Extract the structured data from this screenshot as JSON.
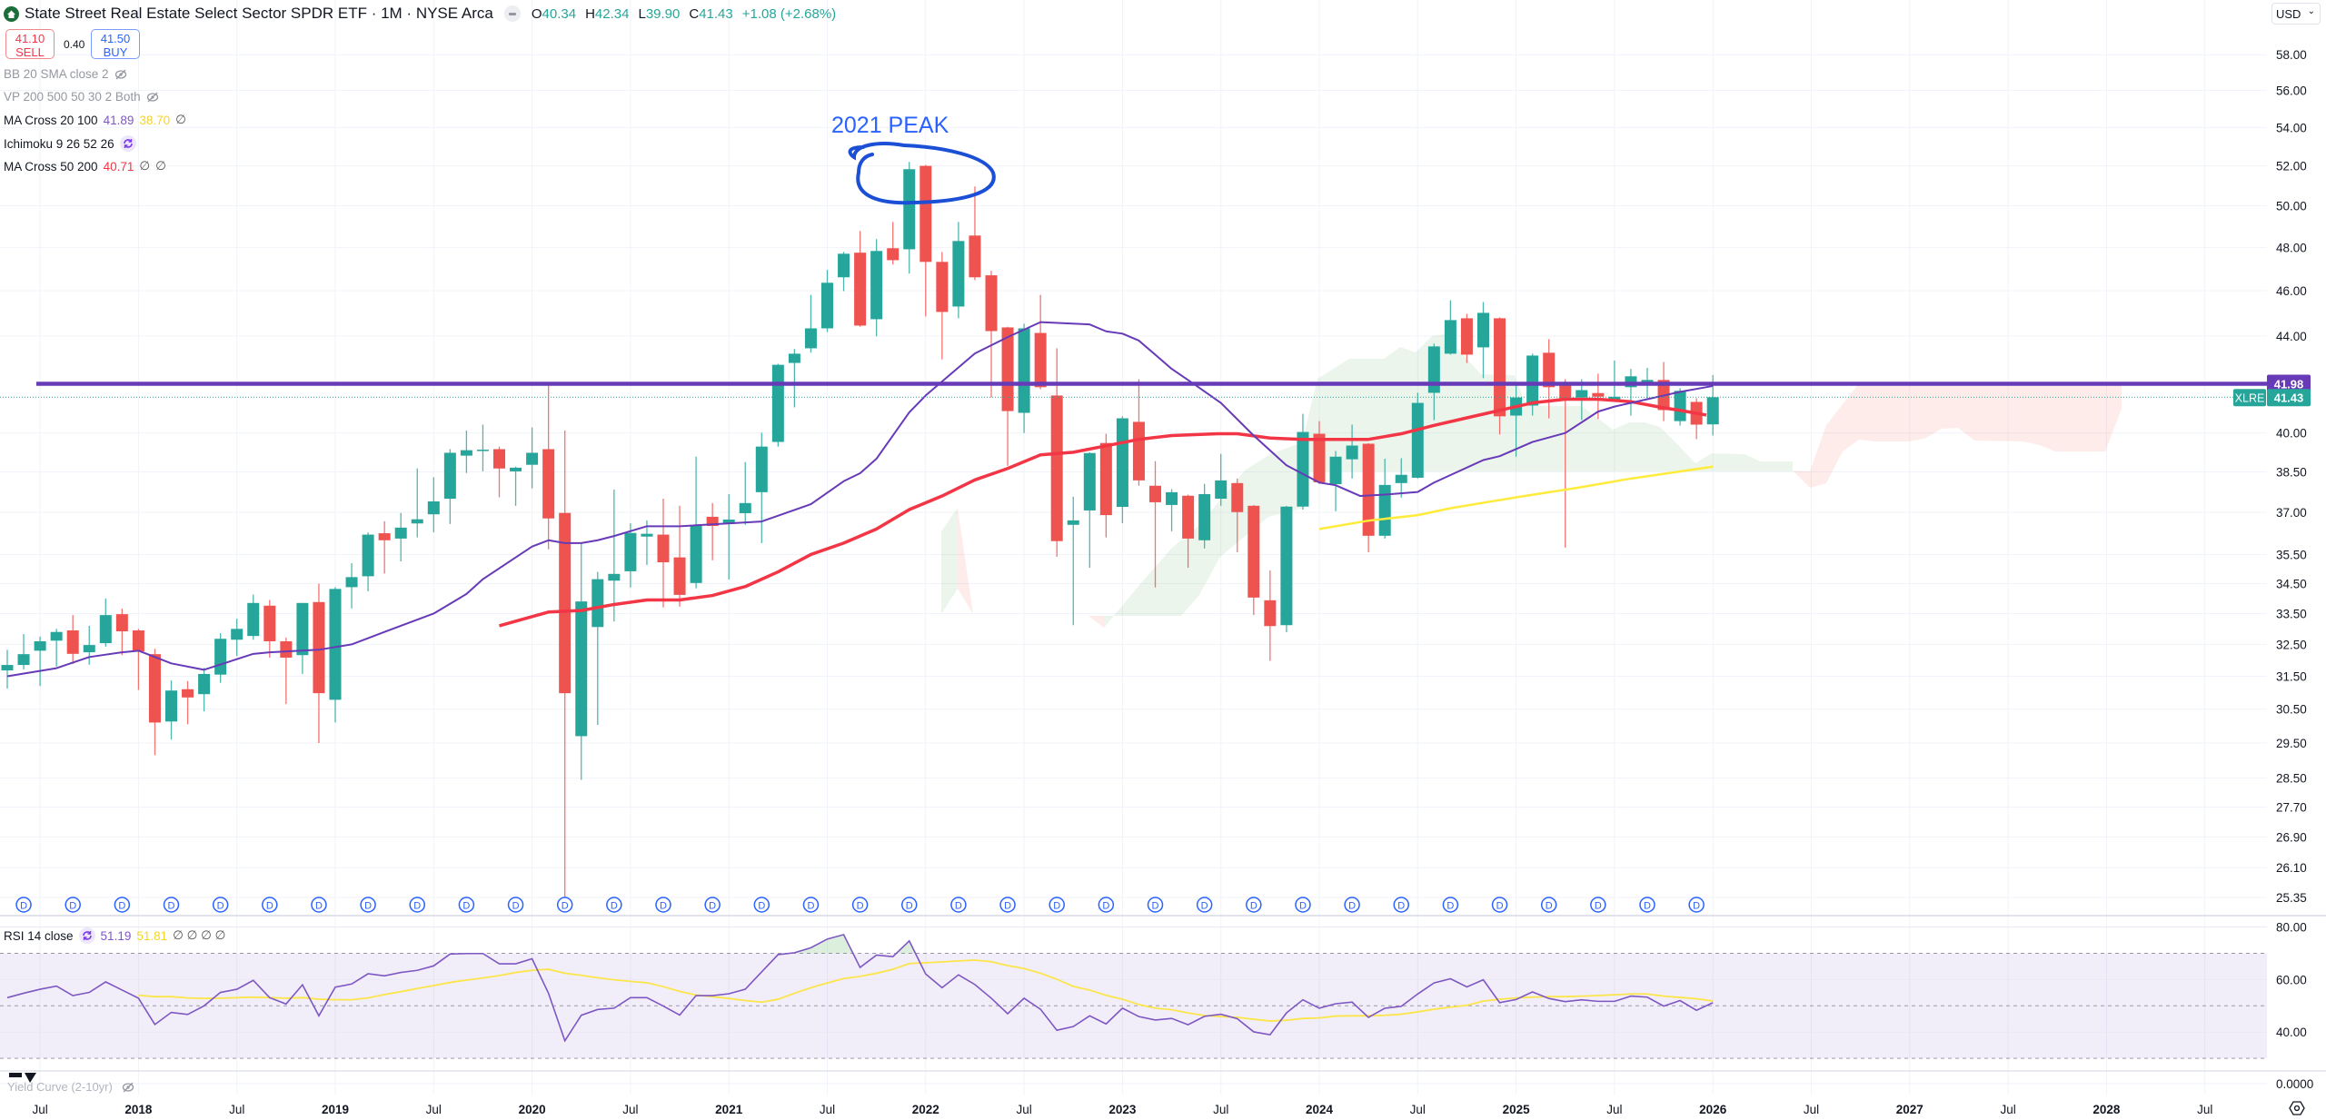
{
  "header": {
    "title": "State Street Real Estate Select Sector SPDR ETF · 1M · NYSE Arca",
    "ohlc": {
      "o_label": "O",
      "o": "40.34",
      "h_label": "H",
      "h": "42.34",
      "l_label": "L",
      "l": "39.90",
      "c_label": "C",
      "c": "41.43",
      "change": "+1.08 (+2.68%)"
    },
    "sell": {
      "price": "41.10",
      "label": "SELL"
    },
    "buy": {
      "price": "41.50",
      "label": "BUY"
    },
    "spread": "0.40",
    "currency": "USD"
  },
  "indicators": {
    "bb": "BB 20 SMA close 2",
    "vp": "VP 200 500 50 30 2 Both",
    "ma_cross_20_100": {
      "label": "MA Cross 20 100",
      "v1": "41.89",
      "v2": "38.70",
      "v3": "∅"
    },
    "ichimoku": "Ichimoku 9 26 52 26",
    "ma_cross_50_200": {
      "label": "MA Cross 50 200",
      "v1": "40.71",
      "v2": "∅",
      "v3": "∅"
    },
    "rsi": {
      "label": "RSI 14 close",
      "v1": "51.19",
      "v2": "51.81",
      "rest": "∅ ∅ ∅ ∅"
    },
    "yield_curve": "Yield Curve (2-10yr)",
    "yield_axis": "0.0000"
  },
  "colors": {
    "up": "#26a69a",
    "down": "#ef5350",
    "ma20": "#673ab7",
    "ma50": "#f23645",
    "ma100": "#ffeb3b",
    "hline": "#673ab7",
    "annotation": "#1a4fd6"
  },
  "annotation": {
    "text": "2021 PEAK"
  },
  "price_labels": {
    "hline": "41.98",
    "symbol": "XLRE",
    "last": "41.43"
  },
  "chart_data": {
    "type": "candlestick",
    "symbol": "XLRE",
    "interval": "1M",
    "start_month": "2017-05",
    "ylim": [
      24.9,
      61.2
    ],
    "yscale": "log",
    "price_ticks": [
      "58.00",
      "56.00",
      "54.00",
      "52.00",
      "50.00",
      "48.00",
      "46.00",
      "44.00",
      "40.00",
      "38.50",
      "37.00",
      "35.50",
      "34.50",
      "33.50",
      "32.50",
      "31.50",
      "30.50",
      "29.50",
      "28.50",
      "27.70",
      "26.90",
      "26.10",
      "25.35"
    ],
    "time_labels": [
      {
        "text": "Jul",
        "i": 2
      },
      {
        "text": "2018",
        "i": 8
      },
      {
        "text": "Jul",
        "i": 14
      },
      {
        "text": "2019",
        "i": 20
      },
      {
        "text": "Jul",
        "i": 26
      },
      {
        "text": "2020",
        "i": 32
      },
      {
        "text": "Jul",
        "i": 38
      },
      {
        "text": "2021",
        "i": 44
      },
      {
        "text": "Jul",
        "i": 50
      },
      {
        "text": "2022",
        "i": 56
      },
      {
        "text": "Jul",
        "i": 62
      },
      {
        "text": "2023",
        "i": 68
      },
      {
        "text": "Jul",
        "i": 74
      },
      {
        "text": "2024",
        "i": 80
      },
      {
        "text": "Jul",
        "i": 86
      },
      {
        "text": "2025",
        "i": 92
      },
      {
        "text": "Jul",
        "i": 98
      },
      {
        "text": "2026",
        "i": 104
      },
      {
        "text": "Jul",
        "i": 110
      },
      {
        "text": "2027",
        "i": 116
      },
      {
        "text": "Jul",
        "i": 122
      },
      {
        "text": "2028",
        "i": 128
      },
      {
        "text": "Jul",
        "i": 134
      }
    ],
    "ohlc": [
      [
        31.68,
        32.33,
        31.12,
        31.85
      ],
      [
        31.85,
        32.83,
        31.71,
        32.19
      ],
      [
        32.3,
        32.75,
        31.2,
        32.6
      ],
      [
        32.62,
        33.0,
        31.8,
        32.9
      ],
      [
        32.95,
        33.45,
        31.88,
        32.2
      ],
      [
        32.25,
        33.1,
        31.86,
        32.48
      ],
      [
        32.54,
        34.0,
        32.43,
        33.45
      ],
      [
        33.48,
        33.66,
        32.16,
        32.92
      ],
      [
        32.95,
        33.0,
        31.08,
        32.28
      ],
      [
        32.19,
        32.36,
        29.15,
        30.1
      ],
      [
        30.13,
        31.37,
        29.6,
        31.06
      ],
      [
        31.1,
        31.35,
        30.05,
        30.85
      ],
      [
        30.95,
        31.76,
        30.43,
        31.57
      ],
      [
        31.55,
        32.86,
        31.3,
        32.68
      ],
      [
        32.65,
        33.33,
        32.13,
        33.0
      ],
      [
        32.77,
        34.13,
        32.65,
        33.85
      ],
      [
        33.76,
        33.95,
        32.08,
        32.6
      ],
      [
        32.6,
        32.72,
        30.65,
        32.08
      ],
      [
        32.16,
        33.85,
        31.57,
        33.85
      ],
      [
        33.88,
        34.5,
        29.5,
        30.98
      ],
      [
        30.78,
        34.38,
        30.1,
        34.32
      ],
      [
        34.38,
        35.2,
        33.67,
        34.72
      ],
      [
        34.75,
        36.28,
        34.24,
        36.2
      ],
      [
        36.25,
        36.68,
        34.84,
        36.0
      ],
      [
        36.06,
        36.98,
        35.26,
        36.45
      ],
      [
        36.6,
        38.63,
        36.1,
        36.75
      ],
      [
        36.93,
        38.3,
        36.28,
        37.4
      ],
      [
        37.5,
        39.37,
        36.58,
        39.23
      ],
      [
        39.12,
        40.1,
        38.46,
        39.33
      ],
      [
        39.33,
        40.33,
        38.52,
        39.35
      ],
      [
        39.37,
        39.47,
        37.55,
        38.63
      ],
      [
        38.52,
        38.7,
        37.24,
        38.66
      ],
      [
        38.77,
        40.22,
        37.88,
        39.23
      ],
      [
        39.37,
        41.99,
        35.68,
        36.78
      ],
      [
        36.98,
        40.1,
        25.0,
        30.98
      ],
      [
        29.7,
        35.93,
        28.45,
        33.9
      ],
      [
        33.06,
        34.9,
        30.03,
        34.65
      ],
      [
        34.6,
        37.84,
        33.24,
        34.83
      ],
      [
        34.92,
        36.61,
        34.37,
        36.26
      ],
      [
        36.13,
        36.71,
        35.14,
        36.23
      ],
      [
        36.2,
        37.5,
        33.7,
        35.23
      ],
      [
        35.4,
        37.24,
        33.73,
        34.12
      ],
      [
        34.52,
        39.08,
        34.34,
        36.51
      ],
      [
        36.84,
        37.34,
        35.3,
        36.51
      ],
      [
        36.58,
        37.67,
        34.64,
        36.74
      ],
      [
        36.97,
        38.87,
        36.55,
        37.34
      ],
      [
        37.74,
        40.01,
        35.9,
        39.47
      ],
      [
        39.65,
        42.81,
        39.47,
        42.77
      ],
      [
        42.85,
        43.44,
        41.02,
        43.24
      ],
      [
        43.47,
        45.81,
        43.28,
        44.33
      ],
      [
        44.33,
        46.95,
        44.17,
        46.36
      ],
      [
        46.61,
        47.79,
        45.98,
        47.7
      ],
      [
        47.75,
        48.78,
        44.4,
        44.45
      ],
      [
        44.73,
        48.39,
        43.98,
        47.83
      ],
      [
        47.96,
        49.21,
        47.2,
        47.4
      ],
      [
        47.91,
        52.2,
        46.78,
        51.83
      ],
      [
        52.0,
        52.05,
        44.85,
        47.32
      ],
      [
        47.32,
        47.78,
        43.0,
        45.05
      ],
      [
        45.29,
        49.21,
        44.77,
        48.3
      ],
      [
        48.56,
        50.96,
        46.48,
        46.61
      ],
      [
        46.7,
        46.91,
        41.42,
        44.21
      ],
      [
        44.37,
        44.4,
        38.73,
        40.87
      ],
      [
        40.8,
        44.53,
        40.0,
        44.33
      ],
      [
        44.13,
        45.81,
        41.76,
        41.84
      ],
      [
        41.5,
        43.47,
        35.42,
        35.97
      ],
      [
        36.55,
        37.57,
        33.12,
        36.71
      ],
      [
        37.07,
        39.25,
        35.04,
        39.22
      ],
      [
        39.61,
        39.97,
        36.1,
        36.9
      ],
      [
        37.2,
        40.66,
        36.61,
        40.58
      ],
      [
        40.44,
        42.17,
        37.98,
        38.18
      ],
      [
        37.98,
        38.91,
        34.37,
        37.37
      ],
      [
        37.27,
        37.85,
        36.32,
        37.74
      ],
      [
        37.61,
        37.65,
        35.04,
        36.06
      ],
      [
        36.0,
        38.05,
        35.71,
        37.67
      ],
      [
        37.5,
        39.19,
        37.24,
        38.18
      ],
      [
        38.08,
        38.25,
        35.58,
        37.01
      ],
      [
        37.24,
        37.27,
        33.45,
        34.03
      ],
      [
        33.94,
        34.95,
        31.98,
        33.09
      ],
      [
        33.12,
        37.24,
        32.89,
        37.21
      ],
      [
        37.21,
        40.76,
        37.1,
        40.04
      ],
      [
        39.97,
        40.47,
        38.05,
        38.11
      ],
      [
        38.04,
        39.3,
        37.04,
        39.08
      ],
      [
        38.98,
        40.33,
        38.25,
        39.51
      ],
      [
        39.58,
        39.6,
        35.58,
        36.16
      ],
      [
        36.16,
        39.0,
        36.06,
        38.01
      ],
      [
        38.08,
        39.02,
        37.54,
        38.39
      ],
      [
        38.28,
        41.61,
        38.25,
        41.2
      ],
      [
        41.61,
        43.67,
        40.51,
        43.55
      ],
      [
        43.24,
        45.57,
        43.2,
        44.69
      ],
      [
        44.77,
        44.97,
        42.85,
        43.2
      ],
      [
        43.51,
        45.49,
        42.21,
        45.01
      ],
      [
        44.77,
        44.81,
        39.94,
        40.66
      ],
      [
        40.69,
        42.02,
        39.08,
        41.42
      ],
      [
        41.09,
        43.24,
        40.69,
        43.16
      ],
      [
        43.28,
        43.86,
        40.58,
        41.84
      ],
      [
        41.99,
        42.17,
        35.74,
        41.35
      ],
      [
        41.42,
        42.17,
        40.51,
        41.72
      ],
      [
        41.6,
        42.4,
        40.55,
        41.45
      ],
      [
        41.35,
        42.95,
        41.25,
        41.45
      ],
      [
        41.84,
        42.6,
        40.69,
        42.29
      ],
      [
        41.91,
        42.64,
        41.39,
        42.14
      ],
      [
        42.14,
        42.89,
        40.47,
        40.91
      ],
      [
        40.47,
        41.8,
        40.29,
        41.69
      ],
      [
        41.24,
        41.39,
        39.76,
        40.33
      ],
      [
        40.34,
        42.34,
        39.9,
        41.43
      ]
    ],
    "ma20": [
      [
        0,
        31.5
      ],
      [
        3,
        31.75
      ],
      [
        5,
        32.1
      ],
      [
        7,
        32.25
      ],
      [
        8,
        32.3
      ],
      [
        10,
        31.9
      ],
      [
        12,
        31.7
      ],
      [
        15,
        32.2
      ],
      [
        16,
        32.25
      ],
      [
        19,
        32.33
      ],
      [
        21,
        32.5
      ],
      [
        23,
        32.9
      ],
      [
        26,
        33.5
      ],
      [
        28,
        34.15
      ],
      [
        29,
        34.65
      ],
      [
        32,
        35.78
      ],
      [
        33,
        36.0
      ],
      [
        34,
        35.9
      ],
      [
        35,
        35.9
      ],
      [
        36,
        36.0
      ],
      [
        37,
        36.15
      ],
      [
        39,
        36.5
      ],
      [
        41,
        36.5
      ],
      [
        46,
        36.67
      ],
      [
        49,
        37.3
      ],
      [
        51,
        38.15
      ],
      [
        52,
        38.45
      ],
      [
        53,
        39.0
      ],
      [
        55,
        40.82
      ],
      [
        56,
        41.5
      ],
      [
        59,
        43.25
      ],
      [
        61,
        43.95
      ],
      [
        63,
        44.6
      ],
      [
        66,
        44.5
      ],
      [
        67,
        44.2
      ],
      [
        68,
        44.1
      ],
      [
        69,
        43.8
      ],
      [
        71,
        42.6
      ],
      [
        72.4,
        41.95
      ],
      [
        74,
        41.2
      ],
      [
        76,
        39.9
      ],
      [
        78,
        38.75
      ],
      [
        80,
        38.1
      ],
      [
        81,
        38.0
      ],
      [
        82.5,
        37.6
      ],
      [
        84,
        37.65
      ],
      [
        86,
        37.75
      ],
      [
        87,
        38.1
      ],
      [
        90,
        38.95
      ],
      [
        91,
        39.1
      ],
      [
        93,
        39.65
      ],
      [
        95,
        40.0
      ],
      [
        97,
        40.85
      ],
      [
        98,
        41.05
      ],
      [
        100,
        41.35
      ],
      [
        101,
        41.5
      ],
      [
        102,
        41.65
      ],
      [
        104,
        41.89
      ]
    ],
    "ma50": [
      [
        30,
        33.1
      ],
      [
        32,
        33.4
      ],
      [
        33,
        33.55
      ],
      [
        35,
        33.6
      ],
      [
        37,
        33.8
      ],
      [
        39,
        33.95
      ],
      [
        41,
        33.95
      ],
      [
        43,
        34.1
      ],
      [
        45,
        34.4
      ],
      [
        47,
        34.9
      ],
      [
        49,
        35.5
      ],
      [
        51,
        35.9
      ],
      [
        53,
        36.4
      ],
      [
        55,
        37.1
      ],
      [
        57,
        37.6
      ],
      [
        59,
        38.2
      ],
      [
        61,
        38.63
      ],
      [
        63,
        39.15
      ],
      [
        65,
        39.25
      ],
      [
        67,
        39.5
      ],
      [
        69,
        39.75
      ],
      [
        71,
        39.9
      ],
      [
        73.8,
        39.97
      ],
      [
        75,
        39.97
      ],
      [
        77,
        39.8
      ],
      [
        79,
        39.75
      ],
      [
        83,
        39.75
      ],
      [
        85,
        39.97
      ],
      [
        87,
        40.3
      ],
      [
        89,
        40.6
      ],
      [
        91,
        40.9
      ],
      [
        93,
        41.2
      ],
      [
        95,
        41.35
      ],
      [
        97,
        41.35
      ],
      [
        99,
        41.25
      ],
      [
        101,
        41.0
      ],
      [
        102,
        40.9
      ],
      [
        103.6,
        40.71
      ]
    ],
    "ma100": [
      [
        80,
        36.4
      ],
      [
        83,
        36.7
      ],
      [
        86,
        36.9
      ],
      [
        88,
        37.15
      ],
      [
        92,
        37.55
      ],
      [
        95.7,
        37.9
      ],
      [
        99,
        38.25
      ],
      [
        104,
        38.7
      ]
    ],
    "horizontal_line": 41.98,
    "last_price": 41.43,
    "dividends": {
      "label": "D",
      "indices": [
        1,
        4,
        7,
        10,
        13,
        16,
        19,
        22,
        25,
        28,
        31,
        34,
        37,
        40,
        43,
        46,
        49,
        52,
        55,
        58,
        61,
        64,
        67,
        70,
        73,
        76,
        79,
        82,
        85,
        88,
        91,
        94,
        97,
        100,
        103
      ]
    },
    "annotation_index": 56.5,
    "rsi": {
      "ticks": [
        "80.00",
        "60.00",
        "40.00"
      ],
      "tick_values": [
        80,
        60,
        40
      ],
      "bands": [
        70,
        50,
        30
      ],
      "values": [
        53.1,
        54.8,
        56.3,
        57.5,
        53.9,
        55.1,
        59.1,
        56.0,
        52.9,
        42.9,
        47.5,
        46.7,
        50.0,
        55.1,
        56.3,
        59.7,
        53.1,
        50.7,
        58.0,
        46.2,
        57.1,
        58.3,
        62.2,
        61.4,
        62.7,
        63.5,
        65.2,
        69.7,
        69.9,
        69.9,
        66.0,
        66.0,
        67.9,
        54.8,
        36.7,
        46.4,
        48.6,
        49.1,
        53.1,
        53.1,
        49.9,
        46.5,
        53.9,
        53.9,
        54.6,
        56.3,
        62.9,
        69.5,
        70.2,
        72.1,
        75.4,
        77.1,
        64.6,
        69.3,
        68.7,
        74.7,
        62.1,
        56.9,
        61.8,
        58.1,
        52.9,
        47.0,
        52.9,
        48.7,
        40.7,
        42.1,
        46.2,
        43.1,
        49.1,
        45.9,
        44.6,
        45.2,
        42.8,
        46.0,
        46.8,
        45.1,
        40.1,
        39.0,
        47.3,
        52.3,
        49.1,
        50.8,
        51.4,
        45.6,
        49.1,
        49.8,
        54.5,
        58.7,
        60.3,
        57.2,
        59.9,
        51.2,
        52.4,
        55.3,
        52.8,
        51.6,
        52.3,
        51.7,
        51.7,
        53.7,
        53.3,
        49.9,
        52.0,
        48.3,
        51.19
      ],
      "ma": [
        null,
        null,
        null,
        null,
        null,
        null,
        null,
        null,
        54.0,
        53.5,
        53.5,
        53.0,
        52.8,
        52.9,
        53.1,
        53.3,
        53.1,
        52.9,
        53.1,
        52.5,
        52.3,
        52.3,
        53.0,
        54.3,
        55.4,
        56.6,
        57.7,
        58.9,
        59.8,
        60.6,
        61.5,
        62.7,
        63.5,
        63.9,
        62.4,
        61.6,
        60.7,
        59.9,
        59.3,
        58.8,
        57.3,
        55.5,
        54.1,
        53.5,
        52.8,
        52.0,
        51.4,
        52.5,
        54.8,
        56.9,
        58.7,
        60.4,
        61.2,
        62.4,
        63.9,
        66.1,
        66.4,
        66.7,
        67.1,
        67.4,
        66.8,
        65.3,
        64.2,
        62.4,
        60.1,
        57.4,
        56.0,
        54.0,
        52.5,
        50.5,
        49.1,
        48.5,
        47.3,
        46.3,
        45.9,
        45.6,
        44.9,
        44.2,
        44.5,
        45.2,
        45.4,
        46.1,
        46.2,
        46.2,
        46.4,
        46.8,
        47.7,
        48.7,
        49.5,
        50.2,
        51.8,
        52.5,
        53.0,
        53.3,
        53.5,
        53.5,
        53.7,
        53.9,
        54.2,
        54.5,
        54.5,
        53.7,
        53.2,
        52.7,
        51.81
      ]
    }
  }
}
